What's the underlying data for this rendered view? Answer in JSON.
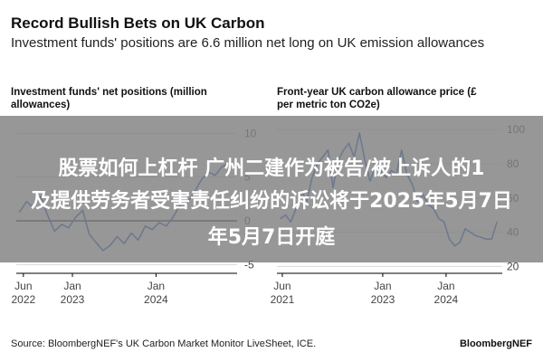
{
  "header": {
    "title": "Record Bullish Bets on UK Carbon",
    "subtitle": "Investment funds' positions are 6.6 million net long on UK emission allowances"
  },
  "footer": {
    "source": "Source: BloombergNEF's UK Carbon Market Monitor LiveSheet, ICE.",
    "brand": "BloombergNEF"
  },
  "overlay": {
    "line1": "股票如何上杠杆 广州二建作为被告/被上诉人的1",
    "line2": "及提供劳务者受害责任纠纷的诉讼将于2025年5月7日",
    "line3": "年5月7日开庭"
  },
  "colors": {
    "line": "#1f5bcc",
    "baseline": "#000000",
    "grid": "#d9d9d9",
    "overlay": "#808080"
  },
  "chart_data": [
    {
      "type": "line",
      "title_lines": [
        "Investment funds' net positions (million",
        "allowances)"
      ],
      "xlim": [
        "2022-05-01",
        "2024-12-20"
      ],
      "ylim": [
        -6,
        12
      ],
      "yticks": [
        10,
        5,
        0,
        -5
      ],
      "yticklabels": [
        "10",
        "5",
        "0",
        "-5"
      ],
      "xticks": [
        {
          "date": "2022-06-01",
          "l1": "Jun",
          "l2": "2022"
        },
        {
          "date": "2023-01-01",
          "l1": "Jan",
          "l2": "2023"
        },
        {
          "date": "2024-01-01",
          "l1": "Jan",
          "l2": "2024"
        }
      ],
      "series": [
        {
          "x": [
            "2022-05-15",
            "2022-06-15",
            "2022-07-15",
            "2022-08-15",
            "2022-09-15",
            "2022-10-15",
            "2022-11-15",
            "2022-12-15",
            "2023-01-15",
            "2023-02-15",
            "2023-03-15",
            "2023-04-15",
            "2023-05-15",
            "2023-06-15",
            "2023-07-15",
            "2023-08-15",
            "2023-09-15",
            "2023-10-15",
            "2023-11-15",
            "2023-12-15",
            "2024-01-15",
            "2024-02-15",
            "2024-03-15",
            "2024-04-15",
            "2024-05-15",
            "2024-06-15",
            "2024-07-15",
            "2024-08-15",
            "2024-09-15",
            "2024-10-15",
            "2024-11-15"
          ],
          "y": [
            1.0,
            2.2,
            1.5,
            2.8,
            0.6,
            -1.2,
            -0.4,
            -0.8,
            0.4,
            1.2,
            -1.5,
            -2.5,
            -3.4,
            -2.8,
            -1.8,
            -2.6,
            -1.4,
            -2.2,
            -0.6,
            -1.0,
            -0.2,
            -0.6,
            0.4,
            1.8,
            2.0,
            3.2,
            4.6,
            5.6,
            5.2,
            6.2,
            6.6
          ]
        }
      ]
    },
    {
      "type": "line",
      "title_lines": [
        "Front-year UK carbon allowance price (£",
        "per metric ton CO2e)"
      ],
      "xlim": [
        "2021-05-01",
        "2024-11-20"
      ],
      "ylim": [
        16,
        108
      ],
      "yticks": [
        100,
        80,
        60,
        40,
        20
      ],
      "yticklabels": [
        "100",
        "80",
        "60",
        "40",
        "20"
      ],
      "xticks": [
        {
          "date": "2021-06-01",
          "l1": "Jun",
          "l2": "2021"
        },
        {
          "date": "2023-01-01",
          "l1": "Jan",
          "l2": "2023"
        },
        {
          "date": "2024-01-01",
          "l1": "Jan",
          "l2": "2024"
        }
      ],
      "series": [
        {
          "x": [
            "2021-05-20",
            "2021-06-20",
            "2021-07-20",
            "2021-08-20",
            "2021-09-20",
            "2021-10-20",
            "2021-11-20",
            "2021-12-20",
            "2022-01-20",
            "2022-02-20",
            "2022-03-20",
            "2022-04-20",
            "2022-05-20",
            "2022-06-20",
            "2022-07-20",
            "2022-08-20",
            "2022-09-20",
            "2022-10-20",
            "2022-11-20",
            "2022-12-20",
            "2023-01-20",
            "2023-02-20",
            "2023-03-20",
            "2023-04-20",
            "2023-05-20",
            "2023-06-20",
            "2023-07-20",
            "2023-08-20",
            "2023-09-20",
            "2023-10-20",
            "2023-11-20",
            "2023-12-20",
            "2024-01-20",
            "2024-02-20",
            "2024-03-20",
            "2024-04-20",
            "2024-05-20",
            "2024-06-20",
            "2024-07-20",
            "2024-08-20",
            "2024-09-20",
            "2024-10-20"
          ],
          "y": [
            48,
            50,
            46,
            54,
            64,
            58,
            72,
            80,
            84,
            88,
            66,
            82,
            88,
            92,
            84,
            98,
            82,
            70,
            78,
            76,
            72,
            76,
            74,
            88,
            74,
            68,
            58,
            62,
            56,
            54,
            48,
            46,
            36,
            32,
            34,
            42,
            40,
            38,
            37,
            36,
            36,
            46
          ]
        }
      ]
    }
  ]
}
